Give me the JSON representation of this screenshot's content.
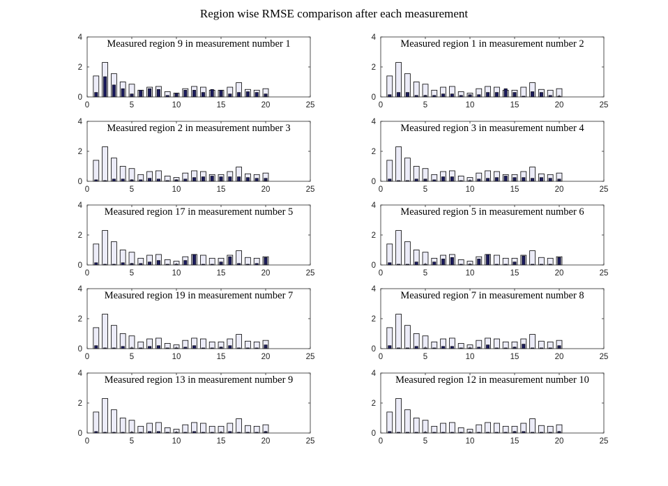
{
  "figure": {
    "title": "Region wise RMSE comparison after each measurement",
    "colors": {
      "baseline_fill": "#ececf8",
      "measured_fill": "#1c1c5e",
      "edge": "#000000"
    }
  },
  "chart_data": [
    {
      "type": "bar",
      "title": "Measured region 9 in measurement number 1",
      "x": [
        1,
        2,
        3,
        4,
        5,
        6,
        7,
        8,
        9,
        10,
        11,
        12,
        13,
        14,
        15,
        16,
        17,
        18,
        19,
        20
      ],
      "xlim": [
        0,
        25
      ],
      "ylim": [
        0,
        4
      ],
      "xticks": [
        0,
        5,
        10,
        15,
        20,
        25
      ],
      "yticks": [
        0,
        2,
        4
      ],
      "series": [
        {
          "values": [
            1.4,
            2.3,
            1.55,
            1.0,
            0.85,
            0.45,
            0.65,
            0.7,
            0.35,
            0.25,
            0.55,
            0.7,
            0.65,
            0.45,
            0.45,
            0.65,
            0.95,
            0.5,
            0.45,
            0.55
          ]
        },
        {
          "values": [
            0.3,
            1.35,
            0.8,
            0.55,
            0.2,
            0.45,
            0.55,
            0.5,
            0.1,
            0.25,
            0.45,
            0.45,
            0.3,
            0.5,
            0.45,
            0.2,
            0.3,
            0.35,
            0.3,
            0.2
          ]
        }
      ]
    },
    {
      "type": "bar",
      "title": "Measured region 1 in measurement number 2",
      "x": [
        1,
        2,
        3,
        4,
        5,
        6,
        7,
        8,
        9,
        10,
        11,
        12,
        13,
        14,
        15,
        16,
        17,
        18,
        19,
        20
      ],
      "xlim": [
        0,
        25
      ],
      "ylim": [
        0,
        4
      ],
      "xticks": [
        0,
        5,
        10,
        15,
        20,
        25
      ],
      "yticks": [
        0,
        2,
        4
      ],
      "series": [
        {
          "values": [
            1.4,
            2.3,
            1.55,
            1.0,
            0.85,
            0.45,
            0.65,
            0.7,
            0.35,
            0.25,
            0.55,
            0.7,
            0.65,
            0.45,
            0.45,
            0.65,
            0.95,
            0.5,
            0.45,
            0.55
          ]
        },
        {
          "values": [
            0.15,
            0.3,
            0.3,
            0.1,
            0.1,
            0.1,
            0.2,
            0.2,
            0.1,
            0.15,
            0.15,
            0.3,
            0.3,
            0.55,
            0.3,
            0.05,
            0.35,
            0.3,
            0.1,
            0.05
          ]
        }
      ]
    },
    {
      "type": "bar",
      "title": "Measured region 2 in measurement number 3",
      "x": [
        1,
        2,
        3,
        4,
        5,
        6,
        7,
        8,
        9,
        10,
        11,
        12,
        13,
        14,
        15,
        16,
        17,
        18,
        19,
        20
      ],
      "xlim": [
        0,
        25
      ],
      "ylim": [
        0,
        4
      ],
      "xticks": [
        0,
        5,
        10,
        15,
        20,
        25
      ],
      "yticks": [
        0,
        2,
        4
      ],
      "series": [
        {
          "values": [
            1.4,
            2.3,
            1.55,
            1.0,
            0.85,
            0.45,
            0.65,
            0.7,
            0.35,
            0.25,
            0.55,
            0.7,
            0.65,
            0.45,
            0.45,
            0.65,
            0.95,
            0.5,
            0.45,
            0.55
          ]
        },
        {
          "values": [
            0.1,
            0.05,
            0.15,
            0.15,
            0.1,
            0.1,
            0.2,
            0.15,
            0.05,
            0.1,
            0.15,
            0.25,
            0.3,
            0.35,
            0.3,
            0.3,
            0.3,
            0.25,
            0.2,
            0.2
          ]
        }
      ]
    },
    {
      "type": "bar",
      "title": "Measured region 3 in measurement number 4",
      "x": [
        1,
        2,
        3,
        4,
        5,
        6,
        7,
        8,
        9,
        10,
        11,
        12,
        13,
        14,
        15,
        16,
        17,
        18,
        19,
        20
      ],
      "xlim": [
        0,
        25
      ],
      "ylim": [
        0,
        4
      ],
      "xticks": [
        0,
        5,
        10,
        15,
        20,
        25
      ],
      "yticks": [
        0,
        2,
        4
      ],
      "series": [
        {
          "values": [
            1.4,
            2.3,
            1.55,
            1.0,
            0.85,
            0.45,
            0.65,
            0.7,
            0.35,
            0.25,
            0.55,
            0.7,
            0.65,
            0.45,
            0.45,
            0.65,
            0.95,
            0.5,
            0.45,
            0.55
          ]
        },
        {
          "values": [
            0.15,
            0.05,
            0.05,
            0.15,
            0.15,
            0.1,
            0.3,
            0.3,
            0.05,
            0.05,
            0.15,
            0.2,
            0.25,
            0.35,
            0.25,
            0.25,
            0.2,
            0.25,
            0.2,
            0.15
          ]
        }
      ]
    },
    {
      "type": "bar",
      "title": "Measured region 17 in measurement number 5",
      "x": [
        1,
        2,
        3,
        4,
        5,
        6,
        7,
        8,
        9,
        10,
        11,
        12,
        13,
        14,
        15,
        16,
        17,
        18,
        19,
        20
      ],
      "xlim": [
        0,
        25
      ],
      "ylim": [
        0,
        4
      ],
      "xticks": [
        0,
        5,
        10,
        15,
        20,
        25
      ],
      "yticks": [
        0,
        2,
        4
      ],
      "series": [
        {
          "values": [
            1.4,
            2.3,
            1.55,
            1.0,
            0.85,
            0.45,
            0.65,
            0.7,
            0.35,
            0.25,
            0.55,
            0.7,
            0.65,
            0.45,
            0.45,
            0.65,
            0.95,
            0.5,
            0.45,
            0.55
          ]
        },
        {
          "values": [
            0.15,
            0.05,
            0.05,
            0.15,
            0.1,
            0.1,
            0.2,
            0.3,
            0.05,
            0.05,
            0.3,
            0.7,
            0.05,
            0.05,
            0.2,
            0.55,
            0.1,
            0.05,
            0.1,
            0.5
          ]
        }
      ]
    },
    {
      "type": "bar",
      "title": "Measured region 5 in measurement number 6",
      "x": [
        1,
        2,
        3,
        4,
        5,
        6,
        7,
        8,
        9,
        10,
        11,
        12,
        13,
        14,
        15,
        16,
        17,
        18,
        19,
        20
      ],
      "xlim": [
        0,
        25
      ],
      "ylim": [
        0,
        4
      ],
      "xticks": [
        0,
        5,
        10,
        15,
        20,
        25
      ],
      "yticks": [
        0,
        2,
        4
      ],
      "series": [
        {
          "values": [
            1.4,
            2.3,
            1.55,
            1.0,
            0.85,
            0.45,
            0.65,
            0.7,
            0.35,
            0.25,
            0.55,
            0.7,
            0.65,
            0.45,
            0.45,
            0.65,
            0.95,
            0.5,
            0.45,
            0.55
          ]
        },
        {
          "values": [
            0.15,
            0.05,
            0.05,
            0.2,
            0.05,
            0.2,
            0.4,
            0.5,
            0.05,
            0.05,
            0.4,
            0.7,
            0.05,
            0.05,
            0.2,
            0.6,
            0.05,
            0.05,
            0.05,
            0.5
          ]
        }
      ]
    },
    {
      "type": "bar",
      "title": "Measured region 19 in measurement number 7",
      "x": [
        1,
        2,
        3,
        4,
        5,
        6,
        7,
        8,
        9,
        10,
        11,
        12,
        13,
        14,
        15,
        16,
        17,
        18,
        19,
        20
      ],
      "xlim": [
        0,
        25
      ],
      "ylim": [
        0,
        4
      ],
      "xticks": [
        0,
        5,
        10,
        15,
        20,
        25
      ],
      "yticks": [
        0,
        2,
        4
      ],
      "series": [
        {
          "values": [
            1.4,
            2.3,
            1.55,
            1.0,
            0.85,
            0.45,
            0.65,
            0.7,
            0.35,
            0.25,
            0.55,
            0.7,
            0.65,
            0.45,
            0.45,
            0.65,
            0.95,
            0.5,
            0.45,
            0.55
          ]
        },
        {
          "values": [
            0.2,
            0.05,
            0.05,
            0.15,
            0.05,
            0.05,
            0.15,
            0.2,
            0.05,
            0.05,
            0.1,
            0.2,
            0.05,
            0.05,
            0.1,
            0.2,
            0.05,
            0.05,
            0.05,
            0.25
          ]
        }
      ]
    },
    {
      "type": "bar",
      "title": "Measured region 7 in measurement number 8",
      "x": [
        1,
        2,
        3,
        4,
        5,
        6,
        7,
        8,
        9,
        10,
        11,
        12,
        13,
        14,
        15,
        16,
        17,
        18,
        19,
        20
      ],
      "xlim": [
        0,
        25
      ],
      "ylim": [
        0,
        4
      ],
      "xticks": [
        0,
        5,
        10,
        15,
        20,
        25
      ],
      "yticks": [
        0,
        2,
        4
      ],
      "series": [
        {
          "values": [
            1.4,
            2.3,
            1.55,
            1.0,
            0.85,
            0.45,
            0.65,
            0.7,
            0.35,
            0.25,
            0.55,
            0.7,
            0.65,
            0.45,
            0.45,
            0.65,
            0.95,
            0.5,
            0.45,
            0.55
          ]
        },
        {
          "values": [
            0.2,
            0.05,
            0.05,
            0.15,
            0.05,
            0.05,
            0.15,
            0.15,
            0.05,
            0.05,
            0.1,
            0.25,
            0.05,
            0.05,
            0.1,
            0.3,
            0.05,
            0.05,
            0.05,
            0.2
          ]
        }
      ]
    },
    {
      "type": "bar",
      "title": "Measured region 13 in measurement number 9",
      "x": [
        1,
        2,
        3,
        4,
        5,
        6,
        7,
        8,
        9,
        10,
        11,
        12,
        13,
        14,
        15,
        16,
        17,
        18,
        19,
        20
      ],
      "xlim": [
        0,
        25
      ],
      "ylim": [
        0,
        4
      ],
      "xticks": [
        0,
        5,
        10,
        15,
        20,
        25
      ],
      "yticks": [
        0,
        2,
        4
      ],
      "series": [
        {
          "values": [
            1.4,
            2.3,
            1.55,
            1.0,
            0.85,
            0.45,
            0.65,
            0.7,
            0.35,
            0.25,
            0.55,
            0.7,
            0.65,
            0.45,
            0.45,
            0.65,
            0.95,
            0.5,
            0.45,
            0.55
          ]
        },
        {
          "values": [
            0.1,
            0.05,
            0.05,
            0.05,
            0.05,
            0.05,
            0.1,
            0.1,
            0.05,
            0.05,
            0.05,
            0.1,
            0.05,
            0.05,
            0.05,
            0.1,
            0.05,
            0.05,
            0.05,
            0.1
          ]
        }
      ]
    },
    {
      "type": "bar",
      "title": "Measured region 12 in measurement number 10",
      "x": [
        1,
        2,
        3,
        4,
        5,
        6,
        7,
        8,
        9,
        10,
        11,
        12,
        13,
        14,
        15,
        16,
        17,
        18,
        19,
        20
      ],
      "xlim": [
        0,
        25
      ],
      "ylim": [
        0,
        4
      ],
      "xticks": [
        0,
        5,
        10,
        15,
        20,
        25
      ],
      "yticks": [
        0,
        2,
        4
      ],
      "series": [
        {
          "values": [
            1.4,
            2.3,
            1.55,
            1.0,
            0.85,
            0.45,
            0.65,
            0.7,
            0.35,
            0.25,
            0.55,
            0.7,
            0.65,
            0.45,
            0.45,
            0.65,
            0.95,
            0.5,
            0.45,
            0.55
          ]
        },
        {
          "values": [
            0.1,
            0.05,
            0.05,
            0.05,
            0.05,
            0.05,
            0.05,
            0.05,
            0.05,
            0.05,
            0.05,
            0.05,
            0.05,
            0.05,
            0.1,
            0.1,
            0.05,
            0.05,
            0.05,
            0.1
          ]
        }
      ]
    }
  ]
}
